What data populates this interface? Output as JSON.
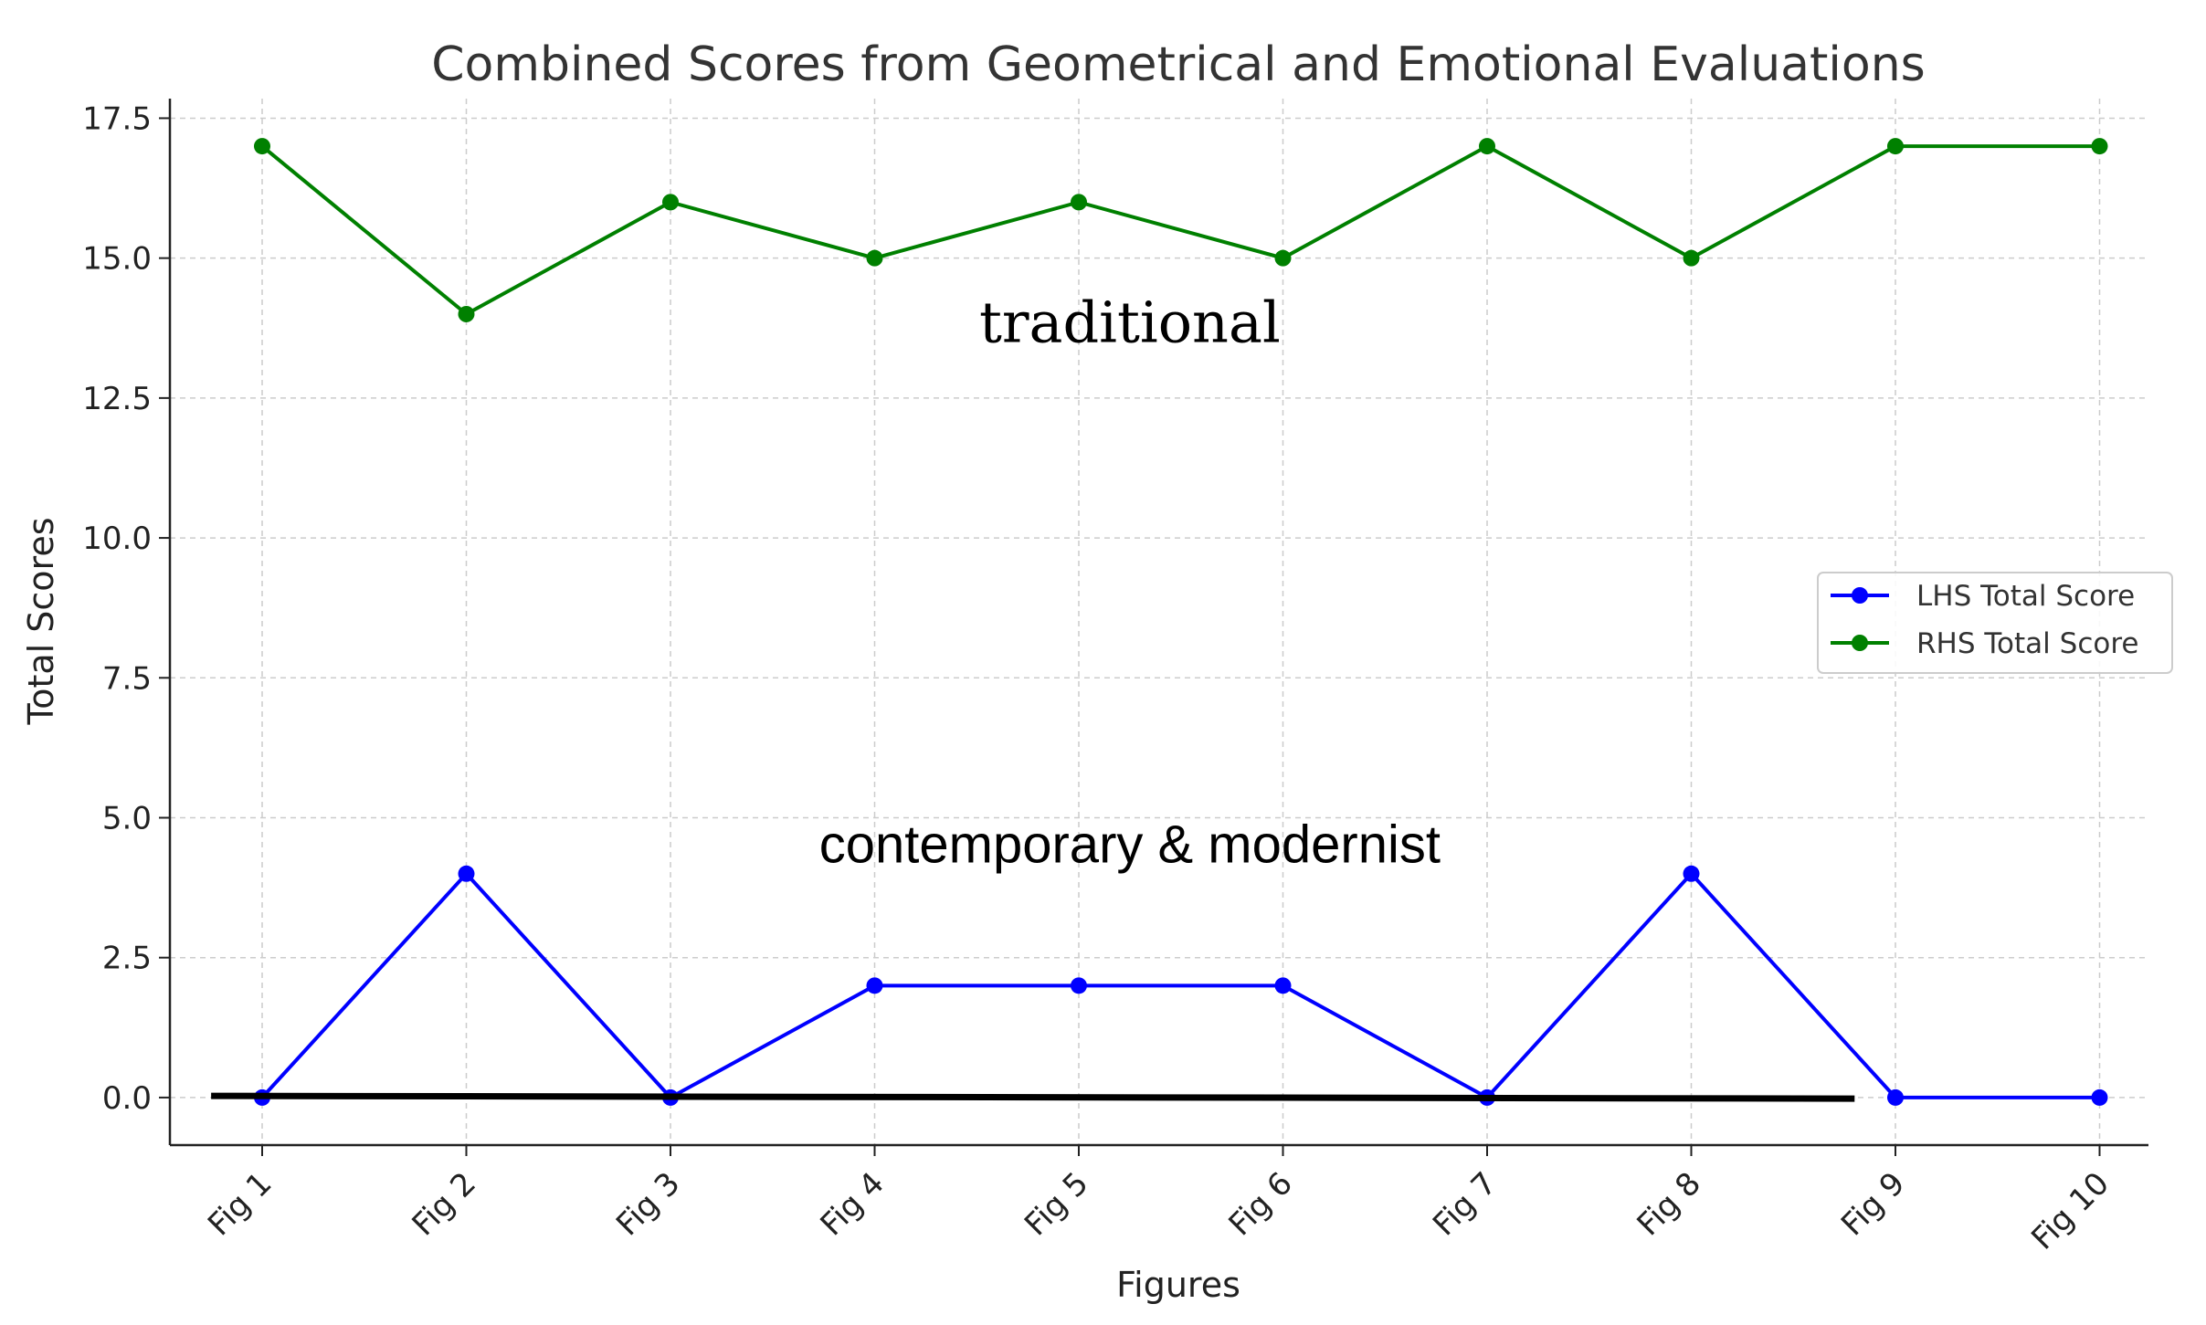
{
  "chart_data": {
    "type": "line",
    "title": "Combined Scores from Geometrical and Emotional Evaluations",
    "xlabel": "Figures",
    "ylabel": "Total Scores",
    "categories": [
      "Fig 1",
      "Fig 2",
      "Fig 3",
      "Fig 4",
      "Fig 5",
      "Fig 6",
      "Fig 7",
      "Fig 8",
      "Fig 9",
      "Fig 10"
    ],
    "y_ticks": [
      "0.0",
      "2.5",
      "5.0",
      "7.5",
      "10.0",
      "12.5",
      "15.0",
      "17.5"
    ],
    "ylim": [
      -0.85,
      17.85
    ],
    "grid": true,
    "legend_position": "right",
    "series": [
      {
        "name": "LHS Total Score",
        "color": "#0000ff",
        "marker": "circle",
        "values": [
          0,
          4,
          0,
          2,
          2,
          2,
          0,
          4,
          0,
          0
        ]
      },
      {
        "name": "RHS Total Score",
        "color": "#008000",
        "marker": "circle",
        "values": [
          17,
          14,
          16,
          15,
          16,
          15,
          17,
          15,
          17,
          17
        ]
      }
    ],
    "annotations": [
      {
        "text": "traditional",
        "x_index": 4.25,
        "y": 13.5,
        "style": "serif"
      },
      {
        "text": "contemporary & modernist",
        "x_index": 4.25,
        "y": 4.2,
        "style": "sans"
      }
    ],
    "baseline": {
      "from_x_index": -0.25,
      "to_x_index": 7.8,
      "y_start": 0.03,
      "y_end": -0.02,
      "color": "#000000"
    }
  }
}
